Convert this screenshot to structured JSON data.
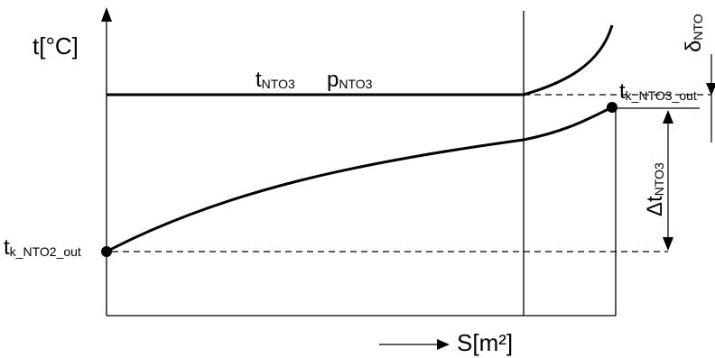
{
  "axes": {
    "y_label": "t[°C]",
    "x_label": "S[m²]"
  },
  "labels": {
    "hot_temp": {
      "main": "t",
      "sub": "NTO3"
    },
    "hot_pressure": {
      "main": "p",
      "sub": "NTO3"
    },
    "cold_outlet": {
      "main": "t",
      "sub": "k_NTO3_out"
    },
    "cold_inlet": {
      "main": "t",
      "sub": "k_NTO2_out"
    },
    "delta_t": {
      "main": "Δt",
      "sub": "NTO3"
    },
    "delta": {
      "main": "δ",
      "sub": "NTO"
    }
  },
  "colors": {
    "ink": "#000000",
    "background": "#ffffff"
  }
}
